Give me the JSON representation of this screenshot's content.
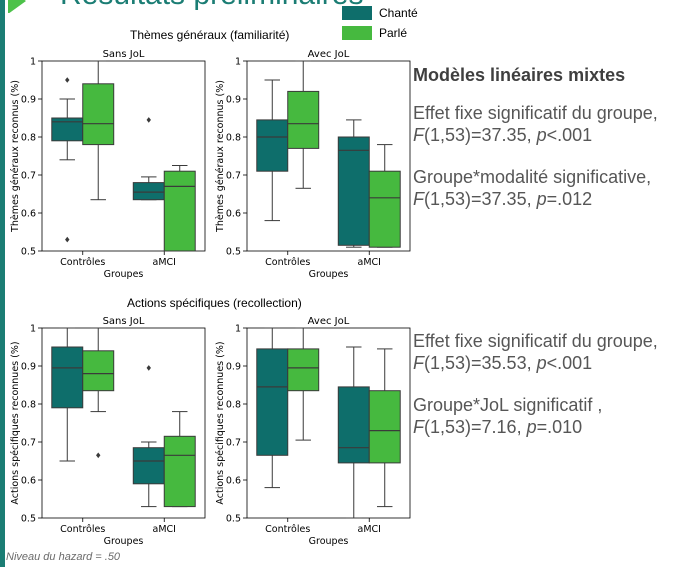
{
  "header": {
    "title": "Résultats préliminaires"
  },
  "legend": {
    "items": [
      {
        "label": "Chanté",
        "color": "#0e6e6b"
      },
      {
        "label": "Parlé",
        "color": "#46b93f"
      }
    ]
  },
  "sections": [
    {
      "title": "Thèmes généraux (familiarité)"
    },
    {
      "title": "Actions spécifiques (recollection)"
    }
  ],
  "chart_data": [
    {
      "type": "box",
      "title": "Sans JoL",
      "xlabel": "Groupes",
      "ylabel": "Thèmes généraux reconnus (%)",
      "ylim": [
        0.5,
        1.0
      ],
      "yticks": [
        0.5,
        0.6,
        0.7,
        0.8,
        0.9,
        1.0
      ],
      "categories": [
        "Contrôles",
        "aMCI"
      ],
      "series": [
        {
          "name": "Chanté",
          "boxes": [
            {
              "whislo": 0.74,
              "q1": 0.79,
              "med": 0.84,
              "q3": 0.85,
              "whishi": 0.9,
              "fliers": [
                0.95,
                0.53
              ]
            },
            {
              "whislo": 0.635,
              "q1": 0.635,
              "med": 0.655,
              "q3": 0.68,
              "whishi": 0.695,
              "fliers": [
                0.845
              ]
            }
          ]
        },
        {
          "name": "Parlé",
          "boxes": [
            {
              "whislo": 0.635,
              "q1": 0.78,
              "med": 0.835,
              "q3": 0.94,
              "whishi": 1.0,
              "fliers": []
            },
            {
              "whislo": 0.5,
              "q1": 0.5,
              "med": 0.67,
              "q3": 0.71,
              "whishi": 0.725,
              "fliers": []
            }
          ]
        }
      ]
    },
    {
      "type": "box",
      "title": "Avec JoL",
      "xlabel": "Groupes",
      "ylabel": "Thèmes généraux reconnus (%)",
      "ylim": [
        0.5,
        1.0
      ],
      "yticks": [
        0.5,
        0.6,
        0.7,
        0.8,
        0.9,
        1.0
      ],
      "categories": [
        "Contrôles",
        "aMCI"
      ],
      "series": [
        {
          "name": "Chanté",
          "boxes": [
            {
              "whislo": 0.58,
              "q1": 0.71,
              "med": 0.8,
              "q3": 0.845,
              "whishi": 0.95,
              "fliers": []
            },
            {
              "whislo": 0.51,
              "q1": 0.515,
              "med": 0.765,
              "q3": 0.8,
              "whishi": 0.845,
              "fliers": []
            }
          ]
        },
        {
          "name": "Parlé",
          "boxes": [
            {
              "whislo": 0.665,
              "q1": 0.77,
              "med": 0.835,
              "q3": 0.92,
              "whishi": 1.0,
              "fliers": []
            },
            {
              "whislo": 0.51,
              "q1": 0.51,
              "med": 0.64,
              "q3": 0.71,
              "whishi": 0.78,
              "fliers": []
            }
          ]
        }
      ]
    },
    {
      "type": "box",
      "title": "Sans JoL",
      "xlabel": "Groupes",
      "ylabel": "Actions spécifiques reconnues (%)",
      "ylim": [
        0.5,
        1.0
      ],
      "yticks": [
        0.5,
        0.6,
        0.7,
        0.8,
        0.9,
        1.0
      ],
      "categories": [
        "Contrôles",
        "aMCI"
      ],
      "series": [
        {
          "name": "Chanté",
          "boxes": [
            {
              "whislo": 0.65,
              "q1": 0.79,
              "med": 0.895,
              "q3": 0.95,
              "whishi": 1.0,
              "fliers": []
            },
            {
              "whislo": 0.53,
              "q1": 0.59,
              "med": 0.65,
              "q3": 0.685,
              "whishi": 0.7,
              "fliers": [
                0.895
              ]
            }
          ]
        },
        {
          "name": "Parlé",
          "boxes": [
            {
              "whislo": 0.78,
              "q1": 0.835,
              "med": 0.88,
              "q3": 0.94,
              "whishi": 1.0,
              "fliers": [
                0.665
              ]
            },
            {
              "whislo": 0.53,
              "q1": 0.53,
              "med": 0.665,
              "q3": 0.715,
              "whishi": 0.78,
              "fliers": []
            }
          ]
        }
      ]
    },
    {
      "type": "box",
      "title": "Avec JoL",
      "xlabel": "Groupes",
      "ylabel": "Actions spécifiques reconnues (%)",
      "ylim": [
        0.5,
        1.0
      ],
      "yticks": [
        0.5,
        0.6,
        0.7,
        0.8,
        0.9,
        1.0
      ],
      "categories": [
        "Contrôles",
        "aMCI"
      ],
      "series": [
        {
          "name": "Chanté",
          "boxes": [
            {
              "whislo": 0.58,
              "q1": 0.665,
              "med": 0.845,
              "q3": 0.945,
              "whishi": 1.0,
              "fliers": []
            },
            {
              "whislo": 0.5,
              "q1": 0.645,
              "med": 0.685,
              "q3": 0.845,
              "whishi": 0.95,
              "fliers": []
            }
          ]
        },
        {
          "name": "Parlé",
          "boxes": [
            {
              "whislo": 0.705,
              "q1": 0.835,
              "med": 0.895,
              "q3": 0.945,
              "whishi": 1.0,
              "fliers": []
            },
            {
              "whislo": 0.53,
              "q1": 0.645,
              "med": 0.73,
              "q3": 0.835,
              "whishi": 0.945,
              "fliers": []
            }
          ]
        }
      ]
    }
  ],
  "stats": [
    {
      "heading": "Modèles linéaires mixtes",
      "paragraphs": [
        [
          {
            "t": "Effet fixe significatif du groupe, "
          },
          {
            "t": "F",
            "i": true
          },
          {
            "t": "(1,53)=37.35, "
          },
          {
            "t": "p",
            "i": true
          },
          {
            "t": "<.001"
          }
        ],
        [
          {
            "t": "Groupe*modalité significative, "
          },
          {
            "t": "F",
            "i": true
          },
          {
            "t": "(1,53)=37.35, "
          },
          {
            "t": "p",
            "i": true
          },
          {
            "t": "=.012"
          }
        ]
      ]
    },
    {
      "paragraphs": [
        [
          {
            "t": "Effet fixe significatif du groupe, "
          },
          {
            "t": "F",
            "i": true
          },
          {
            "t": "(1,53)=35.53, "
          },
          {
            "t": "p",
            "i": true
          },
          {
            "t": "<.001"
          }
        ],
        [
          {
            "t": "Groupe*JoL significatif , "
          },
          {
            "t": "F",
            "i": true
          },
          {
            "t": "(1,53)=7.16, "
          },
          {
            "t": "p",
            "i": true
          },
          {
            "t": "=.010"
          }
        ]
      ]
    }
  ],
  "footnote": "Niveau du hazard = .50"
}
